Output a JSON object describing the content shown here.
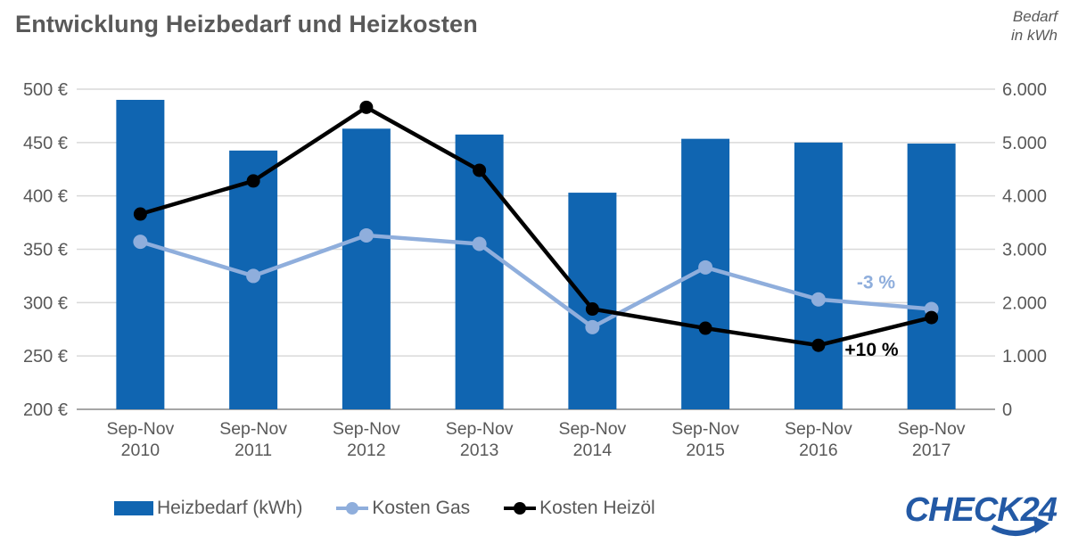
{
  "header": {
    "title": "Entwicklung Heizbedarf und Heizkosten",
    "axis_note_line1": "Bedarf",
    "axis_note_line2": "in kWh"
  },
  "chart_data": {
    "type": "combo_bar_line",
    "categories": [
      "Sep-Nov 2010",
      "Sep-Nov 2011",
      "Sep-Nov 2012",
      "Sep-Nov 2013",
      "Sep-Nov 2014",
      "Sep-Nov 2015",
      "Sep-Nov 2016",
      "Sep-Nov 2017"
    ],
    "x_labels": {
      "line1": "Sep-Nov",
      "years": [
        "2010",
        "2011",
        "2012",
        "2013",
        "2014",
        "2015",
        "2016",
        "2017"
      ]
    },
    "bar_series": {
      "name": "Heizbedarf (kWh)",
      "axis": "right",
      "values": [
        5800,
        4850,
        5260,
        5150,
        4060,
        5070,
        5000,
        4980
      ]
    },
    "line_series": [
      {
        "name": "Kosten Gas",
        "axis": "left",
        "color_key": "gas",
        "values": [
          357,
          325,
          363,
          355,
          277,
          333,
          303,
          294
        ]
      },
      {
        "name": "Kosten Heizöl",
        "axis": "left",
        "color_key": "oil",
        "values": [
          383,
          414,
          483,
          424,
          294,
          276,
          260,
          286
        ]
      }
    ],
    "left_axis": {
      "min": 200,
      "max": 500,
      "step": 50,
      "unit": "€",
      "tick_labels": [
        "200 €",
        "250 €",
        "300 €",
        "350 €",
        "400 €",
        "450 €",
        "500 €"
      ]
    },
    "right_axis": {
      "min": 0,
      "max": 6000,
      "step": 1000,
      "title": "Bedarf in kWh",
      "tick_labels": [
        "0",
        "1.000",
        "2.000",
        "3.000",
        "4.000",
        "5.000",
        "6.000"
      ]
    },
    "annotations": [
      {
        "text": "-3 %",
        "series": "Kosten Gas",
        "color_key": "gas",
        "x_index": 6.51,
        "y_eur": 319
      },
      {
        "text": "+10 %",
        "series": "Kosten Heizöl",
        "color_key": "oil",
        "x_index": 6.47,
        "y_eur": 256
      }
    ],
    "grid": true,
    "legend_position": "bottom"
  },
  "legend": {
    "items": [
      {
        "label": "Heizbedarf (kWh)"
      },
      {
        "label": "Kosten Gas"
      },
      {
        "label": "Kosten Heizöl"
      }
    ]
  },
  "logo": {
    "text": "CHECK24"
  },
  "colors": {
    "bar": "#1065B1",
    "gas": "#8FAEDC",
    "oil": "#000000",
    "text": "#595959",
    "grid": "#D9D9D9",
    "axis_line": "#A6A6A6",
    "logo": "#2359A5"
  }
}
